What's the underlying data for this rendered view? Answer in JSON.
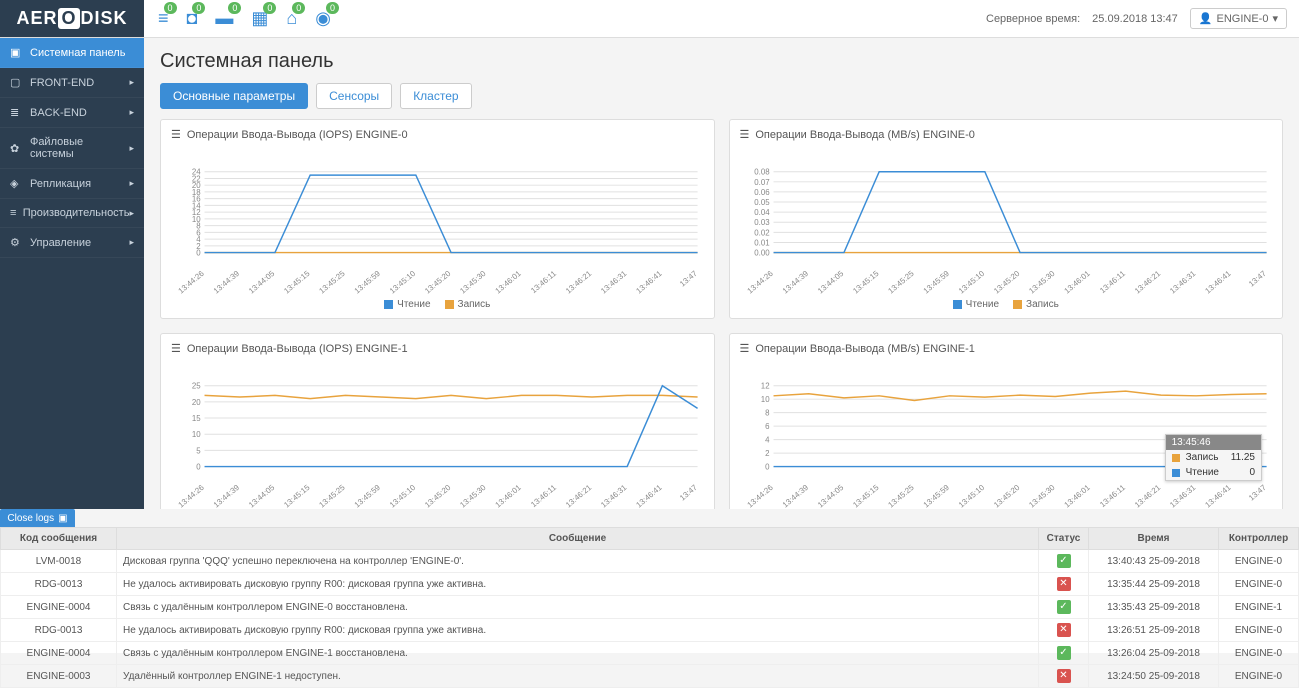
{
  "logo": {
    "pre": "AER",
    "mid": "O",
    "post": "DISK"
  },
  "header": {
    "icons": [
      {
        "glyph": "≡",
        "badge": "0",
        "name": "storage"
      },
      {
        "glyph": "◘",
        "badge": "0",
        "name": "disk"
      },
      {
        "glyph": "▬",
        "badge": "0",
        "name": "server"
      },
      {
        "glyph": "▦",
        "badge": "0",
        "name": "cluster"
      },
      {
        "glyph": "⌂",
        "badge": "0",
        "name": "home"
      },
      {
        "glyph": "◉",
        "badge": "0",
        "name": "network"
      }
    ],
    "server_time_label": "Серверное время:",
    "server_time": "25.09.2018 13:47",
    "user": "ENGINE-0"
  },
  "sidebar": [
    {
      "icon": "▣",
      "label": "Системная панель",
      "active": true,
      "expandable": false
    },
    {
      "icon": "▢",
      "label": "FRONT-END",
      "active": false,
      "expandable": true
    },
    {
      "icon": "≣",
      "label": "BACK-END",
      "active": false,
      "expandable": true
    },
    {
      "icon": "✿",
      "label": "Файловые системы",
      "active": false,
      "expandable": true
    },
    {
      "icon": "◈",
      "label": "Репликация",
      "active": false,
      "expandable": true
    },
    {
      "icon": "≡",
      "label": "Производительность",
      "active": false,
      "expandable": true
    },
    {
      "icon": "⚙",
      "label": "Управление",
      "active": false,
      "expandable": true
    }
  ],
  "page_title": "Системная панель",
  "tabs": [
    {
      "label": "Основные параметры",
      "active": true
    },
    {
      "label": "Сенсоры",
      "active": false
    },
    {
      "label": "Кластер",
      "active": false
    }
  ],
  "charts": {
    "colors": {
      "read": "#3b8dd6",
      "write": "#e8a33d",
      "grid": "#e0e0e0",
      "axis": "#888888",
      "bg": "#ffffff"
    },
    "legend": {
      "read": "Чтение",
      "write": "Запись"
    },
    "xlabels": [
      "13:44:26",
      "13:44:39",
      "13:44:05",
      "13:45:15",
      "13:45:25",
      "13:45:59",
      "13:45:10",
      "13:45:20",
      "13:45:30",
      "13:46:01",
      "13:46:11",
      "13:46:21",
      "13:46:31",
      "13:46:41",
      "13:47"
    ],
    "panels": [
      {
        "title": "Операции Ввода-Вывода (IOPS) ENGINE-0",
        "ymax": 24,
        "ytick_count": 12,
        "read": [
          0,
          0,
          0,
          23,
          23,
          23,
          23,
          0,
          0,
          0,
          0,
          0,
          0,
          0,
          0
        ],
        "write": [
          0,
          0,
          0,
          0,
          0,
          0,
          0,
          0,
          0,
          0,
          0,
          0,
          0,
          0,
          0
        ]
      },
      {
        "title": "Операции Ввода-Вывода (MB/s) ENGINE-0",
        "ymax": 0.08,
        "ytick_count": 8,
        "read": [
          0,
          0,
          0,
          0.08,
          0.08,
          0.08,
          0.08,
          0,
          0,
          0,
          0,
          0,
          0,
          0,
          0
        ],
        "write": [
          0,
          0,
          0,
          0,
          0,
          0,
          0,
          0,
          0,
          0,
          0,
          0,
          0,
          0,
          0
        ]
      },
      {
        "title": "Операции Ввода-Вывода (IOPS) ENGINE-1",
        "ymax": 25,
        "ytick_count": 5,
        "read": [
          0,
          0,
          0,
          0,
          0,
          0,
          0,
          0,
          0,
          0,
          0,
          0,
          0,
          25,
          18
        ],
        "write": [
          22,
          21.5,
          22,
          21,
          22,
          21.5,
          21,
          22,
          21,
          22,
          22,
          21.5,
          22,
          22,
          21.5
        ]
      },
      {
        "title": "Операции Ввода-Вывода (MB/s) ENGINE-1",
        "ymax": 12,
        "ytick_count": 6,
        "read": [
          0,
          0,
          0,
          0,
          0,
          0,
          0,
          0,
          0,
          0,
          0,
          0,
          0,
          0,
          0
        ],
        "write": [
          10.5,
          10.8,
          10.2,
          10.5,
          9.8,
          10.5,
          10.3,
          10.6,
          10.4,
          10.9,
          11.2,
          10.6,
          10.5,
          10.7,
          10.8
        ],
        "tooltip": {
          "time": "13:45:46",
          "write_label": "Запись",
          "write_val": "11.25",
          "read_label": "Чтение",
          "read_val": "0"
        }
      }
    ]
  },
  "close_logs": "Close logs",
  "log_columns": [
    "Код сообщения",
    "Сообщение",
    "Статус",
    "Время",
    "Контроллер"
  ],
  "log_rows": [
    {
      "code": "LVM-0018",
      "msg": "Дисковая группа 'QQQ' успешно переключена на контроллер 'ENGINE-0'.",
      "status": "ok",
      "time": "13:40:43 25-09-2018",
      "ctrl": "ENGINE-0"
    },
    {
      "code": "RDG-0013",
      "msg": "Не удалось активировать дисковую группу R00: дисковая группа уже активна.",
      "status": "err",
      "time": "13:35:44 25-09-2018",
      "ctrl": "ENGINE-0"
    },
    {
      "code": "ENGINE-0004",
      "msg": "Связь с удалённым контроллером ENGINE-0 восстановлена.",
      "status": "ok",
      "time": "13:35:43 25-09-2018",
      "ctrl": "ENGINE-1"
    },
    {
      "code": "RDG-0013",
      "msg": "Не удалось активировать дисковую группу R00: дисковая группа уже активна.",
      "status": "err",
      "time": "13:26:51 25-09-2018",
      "ctrl": "ENGINE-0"
    },
    {
      "code": "ENGINE-0004",
      "msg": "Связь с удалённым контроллером ENGINE-1 восстановлена.",
      "status": "ok",
      "time": "13:26:04 25-09-2018",
      "ctrl": "ENGINE-0"
    },
    {
      "code": "ENGINE-0003",
      "msg": "Удалённый контроллер ENGINE-1 недоступен.",
      "status": "err",
      "time": "13:24:50 25-09-2018",
      "ctrl": "ENGINE-0"
    }
  ]
}
